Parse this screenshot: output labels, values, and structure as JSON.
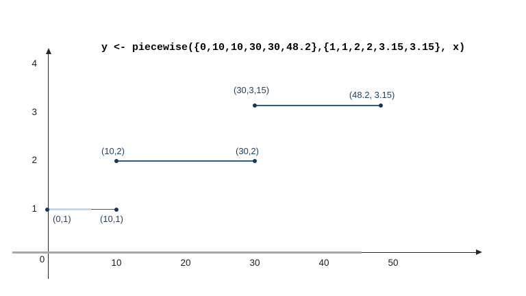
{
  "page": {
    "background": "#ffffff"
  },
  "chart_data": {
    "type": "line",
    "subtype": "piecewise-constant-segments",
    "title": "y <- piecewise({0,10,10,30,30,48.2},{1,1,2,2,3.15,3.15}, x)",
    "xlabel": "",
    "ylabel": "",
    "grid": false,
    "legend": false,
    "xlim": [
      0,
      62
    ],
    "ylim": [
      0,
      4.3
    ],
    "x_ticks": [
      {
        "value": 0,
        "label": "0"
      },
      {
        "value": 10,
        "label": "10"
      },
      {
        "value": 20,
        "label": "20"
      },
      {
        "value": 30,
        "label": "30"
      },
      {
        "value": 40,
        "label": "40"
      },
      {
        "value": 50,
        "label": "50"
      }
    ],
    "y_ticks": [
      {
        "value": 1,
        "label": "1"
      },
      {
        "value": 2,
        "label": "2"
      },
      {
        "value": 3,
        "label": "3"
      },
      {
        "value": 4,
        "label": "4"
      }
    ],
    "segments": [
      {
        "points": [
          {
            "x": 0,
            "y": 1,
            "label": "(0,1)",
            "label_side": "below"
          },
          {
            "x": 10,
            "y": 1,
            "label": "(10,1)",
            "label_side": "below"
          }
        ]
      },
      {
        "points": [
          {
            "x": 10,
            "y": 2,
            "label": "(10,2)",
            "label_side": "above"
          },
          {
            "x": 30,
            "y": 2,
            "label": "(30,2)",
            "label_side": "above"
          }
        ]
      },
      {
        "points": [
          {
            "x": 30,
            "y": 3.15,
            "label": "(30,3,15)",
            "label_side": "above"
          },
          {
            "x": 48.2,
            "y": 3.15,
            "label": "(48.2, 3.15)",
            "label_side": "above"
          }
        ]
      }
    ],
    "colors": {
      "point": "#17365d",
      "segment_line": "#2e5b8c",
      "segment_highlight": "#c9d7e6",
      "point_label": "#1f3d5f",
      "axis": "#262626",
      "axis_overlay_gray": "#a8a8a8",
      "tick_label": "#1a1a1a",
      "title": "#000000"
    }
  }
}
